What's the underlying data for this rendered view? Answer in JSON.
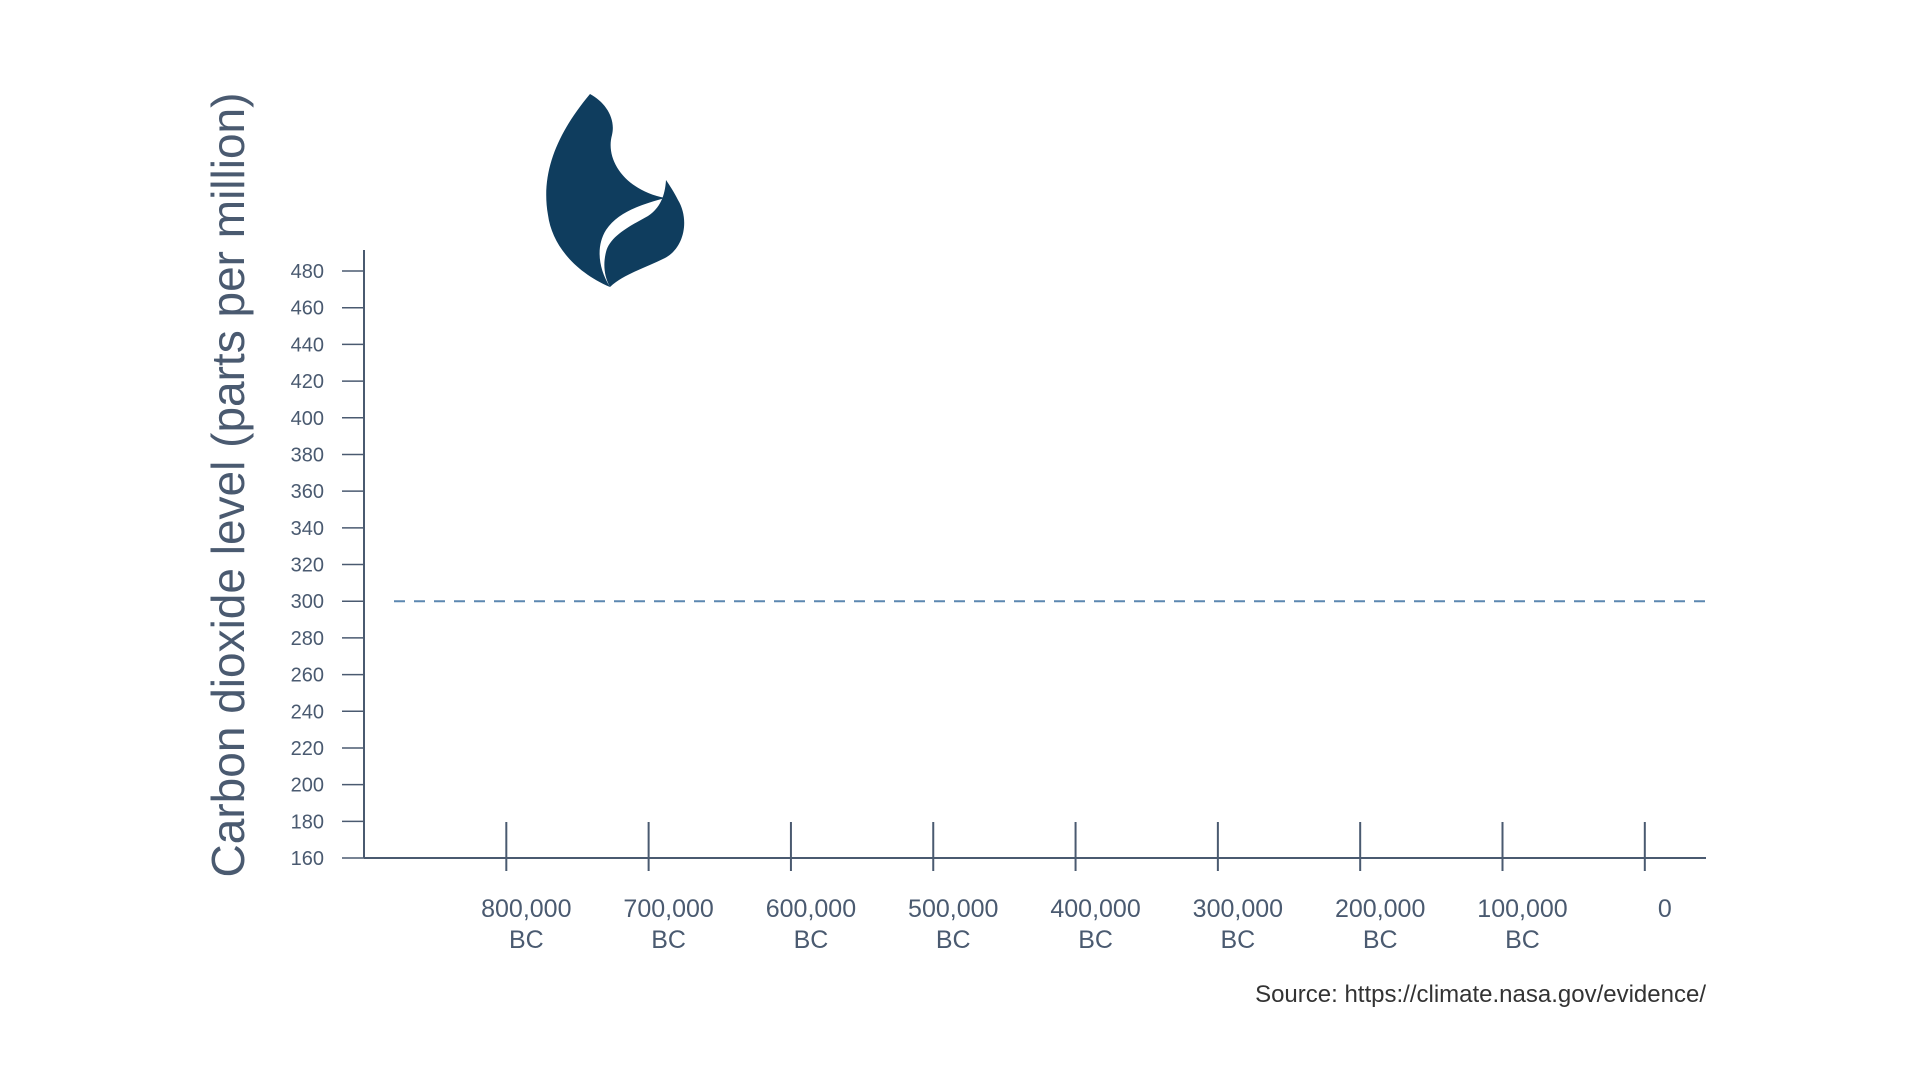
{
  "chart_data": {
    "type": "line",
    "title": "",
    "ylabel": "Carbon dioxide level (parts per million)",
    "xlabel": "",
    "ylim": [
      160,
      480
    ],
    "y_ticks": [
      160,
      180,
      200,
      220,
      240,
      260,
      280,
      300,
      320,
      340,
      360,
      380,
      400,
      420,
      440,
      460,
      480
    ],
    "x_ticks": [
      {
        "value": -800000,
        "line1": "800,000",
        "line2": "BC"
      },
      {
        "value": -700000,
        "line1": "700,000",
        "line2": "BC"
      },
      {
        "value": -600000,
        "line1": "600,000",
        "line2": "BC"
      },
      {
        "value": -500000,
        "line1": "500,000",
        "line2": "BC"
      },
      {
        "value": -400000,
        "line1": "400,000",
        "line2": "BC"
      },
      {
        "value": -300000,
        "line1": "300,000",
        "line2": "BC"
      },
      {
        "value": -200000,
        "line1": "200,000",
        "line2": "BC"
      },
      {
        "value": -100000,
        "line1": "100,000",
        "line2": "BC"
      },
      {
        "value": 0,
        "line1": "0",
        "line2": ""
      }
    ],
    "xlim": [
      -900000,
      43000
    ],
    "reference_line": {
      "y": 300,
      "style": "dashed"
    },
    "series": [],
    "grid": false,
    "source": "Source: https://climate.nasa.gov/evidence/"
  },
  "icon": "flame-icon",
  "colors": {
    "axis": "#4a5a70",
    "label": "#4a5a70",
    "reference_line": "#5b87b0",
    "flame": "#0f3d5e"
  }
}
